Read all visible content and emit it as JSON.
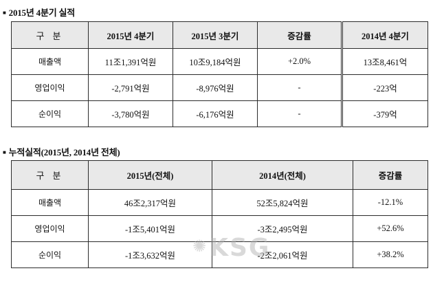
{
  "section1": {
    "title": "2015년 4분기 실적",
    "headers": [
      "구 분",
      "2015년 4분기",
      "2015년 3분기",
      "증감률",
      "2014년 4분기"
    ],
    "rows": [
      [
        "매출액",
        "11조1,391억원",
        "10조9,184억원",
        "+2.0%",
        "13조8,461억"
      ],
      [
        "영업이익",
        "-2,791억원",
        "-8,976억원",
        "-",
        "-223억"
      ],
      [
        "순이익",
        "-3,780억원",
        "-6,176억원",
        "-",
        "-379억"
      ]
    ]
  },
  "section2": {
    "title": "누적실적(2015년, 2014년 전체)",
    "headers": [
      "구 분",
      "2015년(전체)",
      "2014년(전체)",
      "증감률"
    ],
    "rows": [
      [
        "매출액",
        "46조2,317억원",
        "52조5,824억원",
        "-12.1%"
      ],
      [
        "영업이익",
        "-1조5,401억원",
        "-3조2,495억원",
        "+52.6%"
      ],
      [
        "순이익",
        "-1조3,632억원",
        "-2조2,061억원",
        "+38.2%"
      ]
    ]
  },
  "watermark": {
    "text": "KSG",
    "icon": "star-emblem-icon"
  }
}
